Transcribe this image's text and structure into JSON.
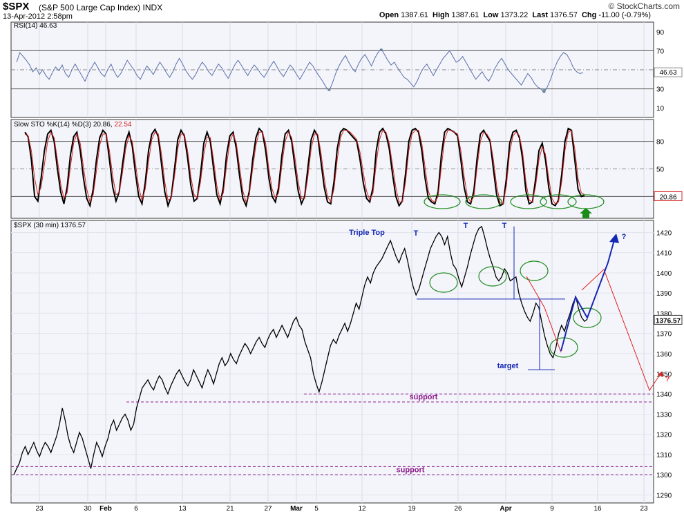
{
  "header": {
    "ticker": "$SPX",
    "description": "(S&P 500 Large Cap Index) INDX",
    "datetime": "13-Apr-2012 2:58pm",
    "brand": "© StockCharts.com",
    "quote": {
      "open_label": "Open",
      "open": "1387.61",
      "high_label": "High",
      "high": "1387.61",
      "low_label": "Low",
      "low": "1373.22",
      "last_label": "Last",
      "last": "1376.57",
      "chg_label": "Chg",
      "chg": "-11.00 (-0.79%)"
    }
  },
  "colors": {
    "rsi_line": "#5a6fa8",
    "rsi_fill": "#7a9a9a",
    "sto_k": "#000000",
    "sto_d": "#d62020",
    "price": "#000000",
    "annotation_blue": "#1428b4",
    "annotation_red": "#e02020",
    "support_purple": "#8b1a8b",
    "circle_green": "#1e8c1e",
    "arrow_green": "#1a8c1a",
    "panel_bg": "#f4f5fa"
  },
  "chart_data": [
    {
      "type": "line",
      "panel": "rsi",
      "title": "RSI(14) 46.63",
      "current_value": "46.63",
      "yticks": [
        "90",
        "70",
        "50",
        "30",
        "10"
      ],
      "ylim": [
        0,
        100
      ],
      "overbought": 70,
      "oversold": 30,
      "series": [
        {
          "name": "RSI(14)",
          "values": [
            58,
            68,
            64,
            60,
            55,
            48,
            52,
            45,
            50,
            44,
            40,
            47,
            53,
            49,
            55,
            46,
            42,
            50,
            56,
            50,
            44,
            38,
            46,
            52,
            58,
            52,
            46,
            43,
            50,
            56,
            48,
            42,
            46,
            53,
            60,
            55,
            50,
            44,
            40,
            47,
            54,
            50,
            45,
            52,
            58,
            53,
            47,
            42,
            48,
            56,
            62,
            56,
            49,
            44,
            40,
            45,
            52,
            58,
            54,
            48,
            44,
            50,
            56,
            52,
            46,
            41,
            48,
            55,
            60,
            55,
            49,
            44,
            50,
            55,
            51,
            46,
            42,
            48,
            54,
            59,
            53,
            47,
            43,
            49,
            55,
            51,
            45,
            40,
            46,
            52,
            58,
            54,
            48,
            43,
            38,
            32,
            28,
            36,
            46,
            54,
            60,
            65,
            58,
            52,
            48,
            56,
            62,
            66,
            60,
            54,
            62,
            68,
            72,
            66,
            60,
            55,
            58,
            52,
            47,
            42,
            40,
            36,
            32,
            38,
            46,
            52,
            56,
            50,
            44,
            50,
            56,
            62,
            66,
            70,
            64,
            58,
            60,
            64,
            58,
            52,
            46,
            40,
            44,
            48,
            42,
            38,
            44,
            52,
            58,
            62,
            56,
            50,
            46,
            42,
            38,
            34,
            40,
            46,
            42,
            36,
            32,
            30,
            26,
            32,
            40,
            50,
            58,
            64,
            68,
            66,
            60,
            52,
            48,
            46,
            47
          ]
        }
      ]
    },
    {
      "type": "line",
      "panel": "stochastic",
      "title": "Slow STO %K(14) %D(3) 20.86, 22.54",
      "title_k_part": "Slow STO %K(14) %D(3) 20.86,",
      "title_d_part": "22.54",
      "current_value": "20.86",
      "yticks": [
        "80",
        "50",
        "20"
      ],
      "ylim": [
        0,
        100
      ],
      "series": [
        {
          "name": "%K(14)",
          "values": [
            90,
            85,
            60,
            20,
            15,
            40,
            70,
            88,
            92,
            80,
            50,
            25,
            12,
            30,
            65,
            85,
            90,
            70,
            40,
            18,
            10,
            28,
            60,
            84,
            92,
            88,
            60,
            30,
            15,
            25,
            55,
            80,
            90,
            75,
            45,
            20,
            12,
            35,
            70,
            88,
            93,
            85,
            55,
            25,
            10,
            20,
            50,
            82,
            92,
            86,
            62,
            32,
            15,
            18,
            45,
            78,
            90,
            80,
            50,
            22,
            12,
            30,
            66,
            86,
            90,
            72,
            42,
            18,
            10,
            26,
            60,
            84,
            94,
            90,
            70,
            40,
            20,
            14,
            30,
            65,
            88,
            92,
            80,
            52,
            26,
            12,
            20,
            52,
            82,
            92,
            86,
            58,
            30,
            14,
            12,
            36,
            72,
            90,
            94,
            92,
            88,
            84,
            80,
            60,
            35,
            18,
            14,
            30,
            70,
            90,
            94,
            88,
            72,
            44,
            20,
            10,
            15,
            45,
            80,
            92,
            94,
            90,
            70,
            40,
            18,
            14,
            12,
            25,
            65,
            90,
            94,
            92,
            90,
            86,
            60,
            30,
            14,
            12,
            26,
            62,
            88,
            92,
            86,
            80,
            50,
            22,
            10,
            12,
            40,
            78,
            90,
            92,
            84,
            60,
            26,
            12,
            14,
            40,
            70,
            78,
            60,
            30,
            12,
            10,
            16,
            44,
            80,
            94,
            92,
            60,
            28,
            20,
            21
          ]
        },
        {
          "name": "%D(3)",
          "values": [
            88,
            86,
            70,
            40,
            22,
            30,
            55,
            80,
            90,
            84,
            60,
            34,
            18,
            24,
            52,
            78,
            88,
            78,
            52,
            28,
            14,
            22,
            48,
            76,
            88,
            88,
            70,
            42,
            22,
            24,
            46,
            72,
            86,
            80,
            56,
            30,
            16,
            28,
            58,
            82,
            90,
            88,
            66,
            36,
            16,
            18,
            42,
            72,
            88,
            88,
            70,
            42,
            22,
            18,
            36,
            66,
            84,
            84,
            60,
            32,
            16,
            24,
            54,
            80,
            88,
            78,
            52,
            26,
            14,
            22,
            50,
            76,
            90,
            90,
            78,
            50,
            28,
            18,
            24,
            54,
            80,
            90,
            84,
            62,
            36,
            18,
            18,
            42,
            72,
            88,
            88,
            68,
            40,
            20,
            14,
            28,
            60,
            84,
            92,
            92,
            90,
            86,
            82,
            68,
            46,
            26,
            16,
            24,
            56,
            82,
            92,
            90,
            78,
            54,
            30,
            14,
            14,
            36,
            70,
            88,
            92,
            92,
            78,
            52,
            26,
            16,
            14,
            20,
            52,
            82,
            92,
            92,
            90,
            88,
            70,
            42,
            20,
            14,
            20,
            52,
            80,
            90,
            88,
            82,
            60,
            32,
            14,
            12,
            32,
            68,
            86,
            90,
            86,
            68,
            36,
            16,
            14,
            32,
            60,
            74,
            66,
            40,
            18,
            12,
            14,
            36,
            70,
            90,
            92,
            72,
            40,
            24,
            22
          ]
        }
      ]
    },
    {
      "type": "line",
      "panel": "price",
      "title": "$SPX (30 min) 1376.57",
      "current_value": "1376.57",
      "ylim": [
        1286,
        1426
      ],
      "yticks": [
        "1420",
        "1410",
        "1400",
        "1390",
        "1380",
        "1370",
        "1360",
        "1350",
        "1340",
        "1330",
        "1320",
        "1310",
        "1300",
        "1290"
      ],
      "xticks": [
        "23",
        "30",
        "Feb",
        "6",
        "13",
        "21",
        "27",
        "Mar",
        "5",
        "12",
        "19",
        "26",
        "Apr",
        "9",
        "16",
        "23"
      ],
      "series": [
        {
          "name": "$SPX",
          "values": [
            1300,
            1303,
            1306,
            1311,
            1314,
            1310,
            1313,
            1316,
            1312,
            1309,
            1313,
            1316,
            1314,
            1311,
            1315,
            1319,
            1325,
            1333,
            1327,
            1319,
            1314,
            1311,
            1316,
            1321,
            1318,
            1313,
            1308,
            1303,
            1310,
            1316,
            1313,
            1309,
            1314,
            1318,
            1324,
            1327,
            1322,
            1325,
            1328,
            1330,
            1327,
            1322,
            1325,
            1333,
            1338,
            1343,
            1345,
            1347,
            1344,
            1342,
            1346,
            1349,
            1347,
            1343,
            1340,
            1344,
            1347,
            1350,
            1352,
            1349,
            1346,
            1344,
            1347,
            1352,
            1349,
            1346,
            1343,
            1348,
            1352,
            1349,
            1345,
            1350,
            1355,
            1358,
            1354,
            1356,
            1360,
            1357,
            1355,
            1359,
            1362,
            1365,
            1363,
            1360,
            1363,
            1366,
            1368,
            1365,
            1363,
            1367,
            1370,
            1372,
            1368,
            1371,
            1374,
            1371,
            1368,
            1372,
            1376,
            1378,
            1374,
            1372,
            1366,
            1362,
            1358,
            1350,
            1345,
            1341,
            1346,
            1352,
            1358,
            1364,
            1367,
            1365,
            1369,
            1372,
            1375,
            1371,
            1375,
            1380,
            1385,
            1382,
            1388,
            1394,
            1398,
            1395,
            1400,
            1403,
            1405,
            1407,
            1410,
            1413,
            1416,
            1412,
            1408,
            1405,
            1409,
            1412,
            1406,
            1399,
            1393,
            1389,
            1392,
            1397,
            1402,
            1407,
            1412,
            1415,
            1418,
            1420,
            1418,
            1414,
            1418,
            1410,
            1404,
            1402,
            1397,
            1393,
            1398,
            1403,
            1409,
            1414,
            1419,
            1422,
            1423,
            1418,
            1412,
            1407,
            1403,
            1398,
            1396,
            1398,
            1402,
            1400,
            1396,
            1397,
            1398,
            1390,
            1385,
            1381,
            1378,
            1376,
            1380,
            1385,
            1383,
            1376,
            1369,
            1364,
            1360,
            1358,
            1363,
            1370,
            1374,
            1371,
            1376,
            1380,
            1385,
            1388,
            1382,
            1378,
            1376,
            1377
          ]
        }
      ]
    }
  ],
  "annotations": {
    "triple_top": "Triple Top",
    "t1": "T",
    "t2": "T",
    "t3": "T",
    "target": "target",
    "support_upper": "support",
    "support_lower": "support",
    "q_up": "?",
    "q_down": "?"
  }
}
